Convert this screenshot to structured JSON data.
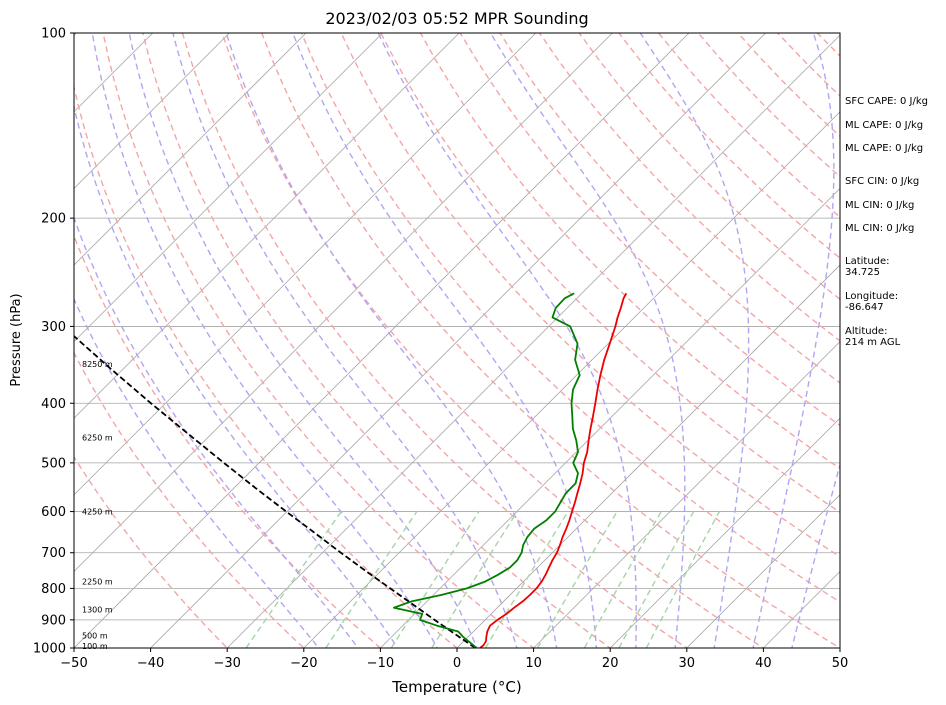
{
  "chart_data": {
    "type": "skew-t",
    "title": "2023/02/03 05:52 MPR Sounding",
    "xlabel": "Temperature (°C)",
    "ylabel": "Pressure (hPa)",
    "xlim": [
      -50,
      50
    ],
    "ylim_hpa": [
      1000,
      100
    ],
    "x_ticks": [
      -50,
      -40,
      -30,
      -20,
      -10,
      0,
      10,
      20,
      30,
      40,
      50
    ],
    "x_tick_labels": [
      "−50",
      "−40",
      "−30",
      "−20",
      "−10",
      "0",
      "10",
      "20",
      "30",
      "40",
      "50"
    ],
    "y_ticks": [
      100,
      200,
      300,
      400,
      500,
      600,
      700,
      800,
      900,
      1000
    ],
    "y_tick_labels": [
      "100",
      "200",
      "300",
      "400",
      "500",
      "600",
      "700",
      "800",
      "900",
      "1000"
    ],
    "grid": true,
    "colors": {
      "temperature": "#ee0000",
      "dewpoint": "#007f00",
      "parcel": "#000000",
      "isotherm": "#a6a6a6",
      "dry_adiabat": "#f4a6a6",
      "moist_adiabat": "#b0a6f2",
      "mixing_ratio": "#a6d4a6"
    },
    "height_labels": [
      {
        "p": 345,
        "text": "8250 m"
      },
      {
        "p": 455,
        "text": "6250 m"
      },
      {
        "p": 600,
        "text": "4250 m"
      },
      {
        "p": 780,
        "text": "2250 m"
      },
      {
        "p": 865,
        "text": "1300 m"
      },
      {
        "p": 955,
        "text": "500 m"
      },
      {
        "p": 993,
        "text": "100 m"
      }
    ],
    "temperature": {
      "p": [
        1000,
        990,
        975,
        960,
        940,
        920,
        900,
        880,
        860,
        840,
        820,
        800,
        780,
        760,
        740,
        720,
        700,
        680,
        660,
        640,
        620,
        600,
        580,
        560,
        540,
        520,
        500,
        480,
        460,
        440,
        420,
        400,
        380,
        360,
        340,
        320,
        300,
        290,
        280,
        270,
        265
      ],
      "t": [
        3.0,
        3.1,
        2.9,
        2.4,
        1.8,
        1.4,
        1.6,
        2.0,
        2.2,
        2.5,
        2.6,
        2.6,
        2.4,
        2.0,
        1.5,
        1.0,
        0.6,
        0.0,
        -0.7,
        -1.3,
        -2.0,
        -2.8,
        -3.6,
        -4.5,
        -5.4,
        -6.4,
        -7.6,
        -8.6,
        -9.9,
        -11.2,
        -12.5,
        -13.9,
        -15.4,
        -16.9,
        -18.4,
        -19.8,
        -21.3,
        -22.2,
        -23.0,
        -23.9,
        -24.2
      ]
    },
    "dewpoint": {
      "p": [
        1000,
        990,
        975,
        960,
        940,
        920,
        900,
        880,
        860,
        840,
        820,
        800,
        780,
        760,
        740,
        720,
        700,
        680,
        660,
        640,
        620,
        600,
        580,
        560,
        540,
        520,
        500,
        480,
        460,
        440,
        420,
        400,
        380,
        360,
        340,
        320,
        300,
        290,
        280,
        270,
        265
      ],
      "t": [
        2.5,
        1.8,
        0.6,
        -0.6,
        -2.0,
        -5.5,
        -8.5,
        -9.0,
        -13.5,
        -12.0,
        -9.0,
        -6.5,
        -5.0,
        -4.2,
        -3.6,
        -3.6,
        -4.0,
        -4.8,
        -5.3,
        -5.5,
        -5.0,
        -5.0,
        -5.5,
        -6.0,
        -6.0,
        -7.0,
        -9.0,
        -9.8,
        -11.5,
        -13.5,
        -15.2,
        -17.0,
        -18.6,
        -19.6,
        -22.2,
        -24.0,
        -27.2,
        -30.7,
        -31.5,
        -31.6,
        -31.0
      ]
    },
    "parcel": {
      "p": [
        1000,
        950,
        900,
        850,
        800,
        750,
        700,
        650,
        600,
        550,
        500,
        450,
        400,
        350,
        300,
        264
      ],
      "t": [
        2.4,
        -2.0,
        -6.6,
        -11.4,
        -16.5,
        -21.9,
        -27.6,
        -33.6,
        -40.1,
        -47.1,
        -54.6,
        -62.8,
        -71.9,
        -82.0,
        -93.4,
        -103.0
      ]
    },
    "annotations": [
      {
        "label": "SFC CAPE: 0 J/kg"
      },
      {
        "label": "ML CAPE: 0 J/kg"
      },
      {
        "label": "ML CAPE: 0 J/kg"
      },
      {
        "label": "SFC CIN: 0 J/kg"
      },
      {
        "label": "ML CIN: 0 J/kg"
      },
      {
        "label": "ML CIN: 0 J/kg"
      },
      {
        "label": "Latitude:",
        "value": "34.725"
      },
      {
        "label": "Longitude:",
        "value": "-86.647"
      },
      {
        "label": "Altitude:",
        "value": "214 m AGL"
      }
    ]
  }
}
